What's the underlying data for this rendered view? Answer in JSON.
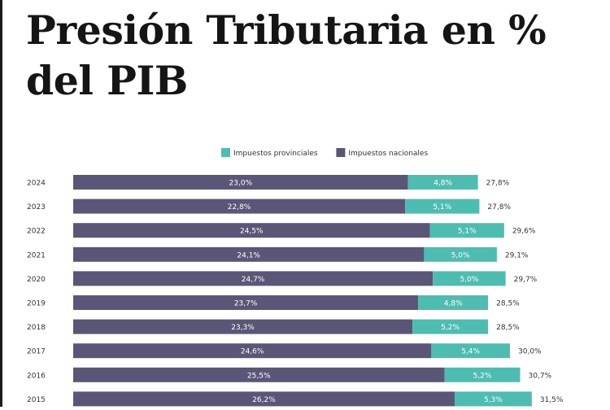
{
  "title_line1": "Presión Tributaria en %",
  "title_line2": "del PIB",
  "chart_data": {
    "type": "bar",
    "orientation": "horizontal",
    "stacked": true,
    "title": "Presión Tributaria en % del PIB",
    "legend_position": "top-center",
    "grid": false,
    "categories": [
      "2024",
      "2023",
      "2022",
      "2021",
      "2020",
      "2019",
      "2018",
      "2017",
      "2016",
      "2015"
    ],
    "series": [
      {
        "name": "Impuestos nacionales",
        "color": "#5a5678",
        "values": [
          23.0,
          22.8,
          24.5,
          24.1,
          24.7,
          23.7,
          23.3,
          24.6,
          25.5,
          26.2
        ],
        "labels": [
          "23,0%",
          "22,8%",
          "24,5%",
          "24,1%",
          "24,7%",
          "23,7%",
          "23,3%",
          "24,6%",
          "25,5%",
          "26,2%"
        ]
      },
      {
        "name": "Impuestos provinciales",
        "color": "#4dbdb1",
        "values": [
          4.8,
          5.1,
          5.1,
          5.0,
          5.0,
          4.8,
          5.2,
          5.4,
          5.2,
          5.3
        ],
        "labels": [
          "4,8%",
          "5,1%",
          "5,1%",
          "5,0%",
          "5,0%",
          "4,8%",
          "5,2%",
          "5,4%",
          "5,2%",
          "5,3%"
        ]
      }
    ],
    "totals": [
      27.8,
      27.8,
      29.6,
      29.1,
      29.7,
      28.5,
      28.5,
      30.0,
      30.7,
      31.5
    ],
    "total_labels": [
      "27,8%",
      "27,8%",
      "29,6%",
      "29,1%",
      "29,7%",
      "28,5%",
      "28,5%",
      "30,0%",
      "30,7%",
      "31,5%"
    ],
    "legend": [
      {
        "name": "Impuestos provinciales",
        "color": "#4dbdb1"
      },
      {
        "name": "Impuestos nacionales",
        "color": "#5a5678"
      }
    ]
  }
}
